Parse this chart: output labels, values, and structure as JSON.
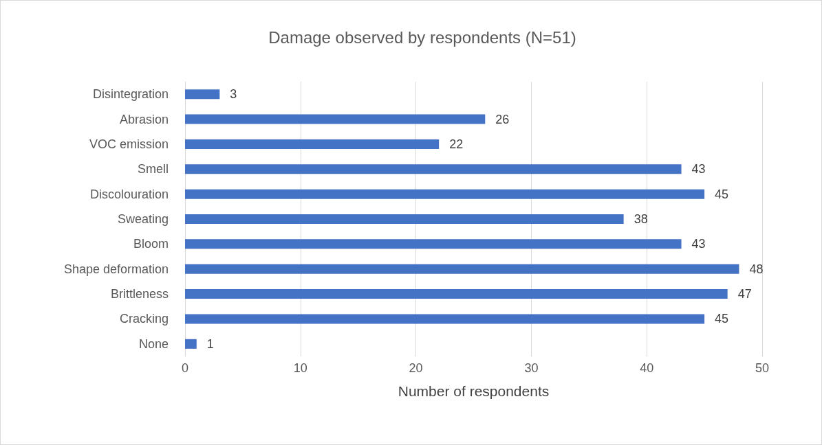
{
  "chart_data": {
    "type": "bar",
    "orientation": "horizontal",
    "title": "Damage observed by respondents (N=51)",
    "xlabel": "Number of respondents",
    "categories": [
      "Disintegration",
      "Abrasion",
      "VOC emission",
      "Smell",
      "Discolouration",
      "Sweating",
      "Bloom",
      "Shape deformation",
      "Brittleness",
      "Cracking",
      "None"
    ],
    "values": [
      3,
      26,
      22,
      43,
      45,
      38,
      43,
      48,
      47,
      45,
      1
    ],
    "color": "#4472c4",
    "xlim": [
      0,
      50
    ],
    "xticks": [
      0,
      10,
      20,
      30,
      40,
      50
    ],
    "grid": "x",
    "data_labels": true
  }
}
